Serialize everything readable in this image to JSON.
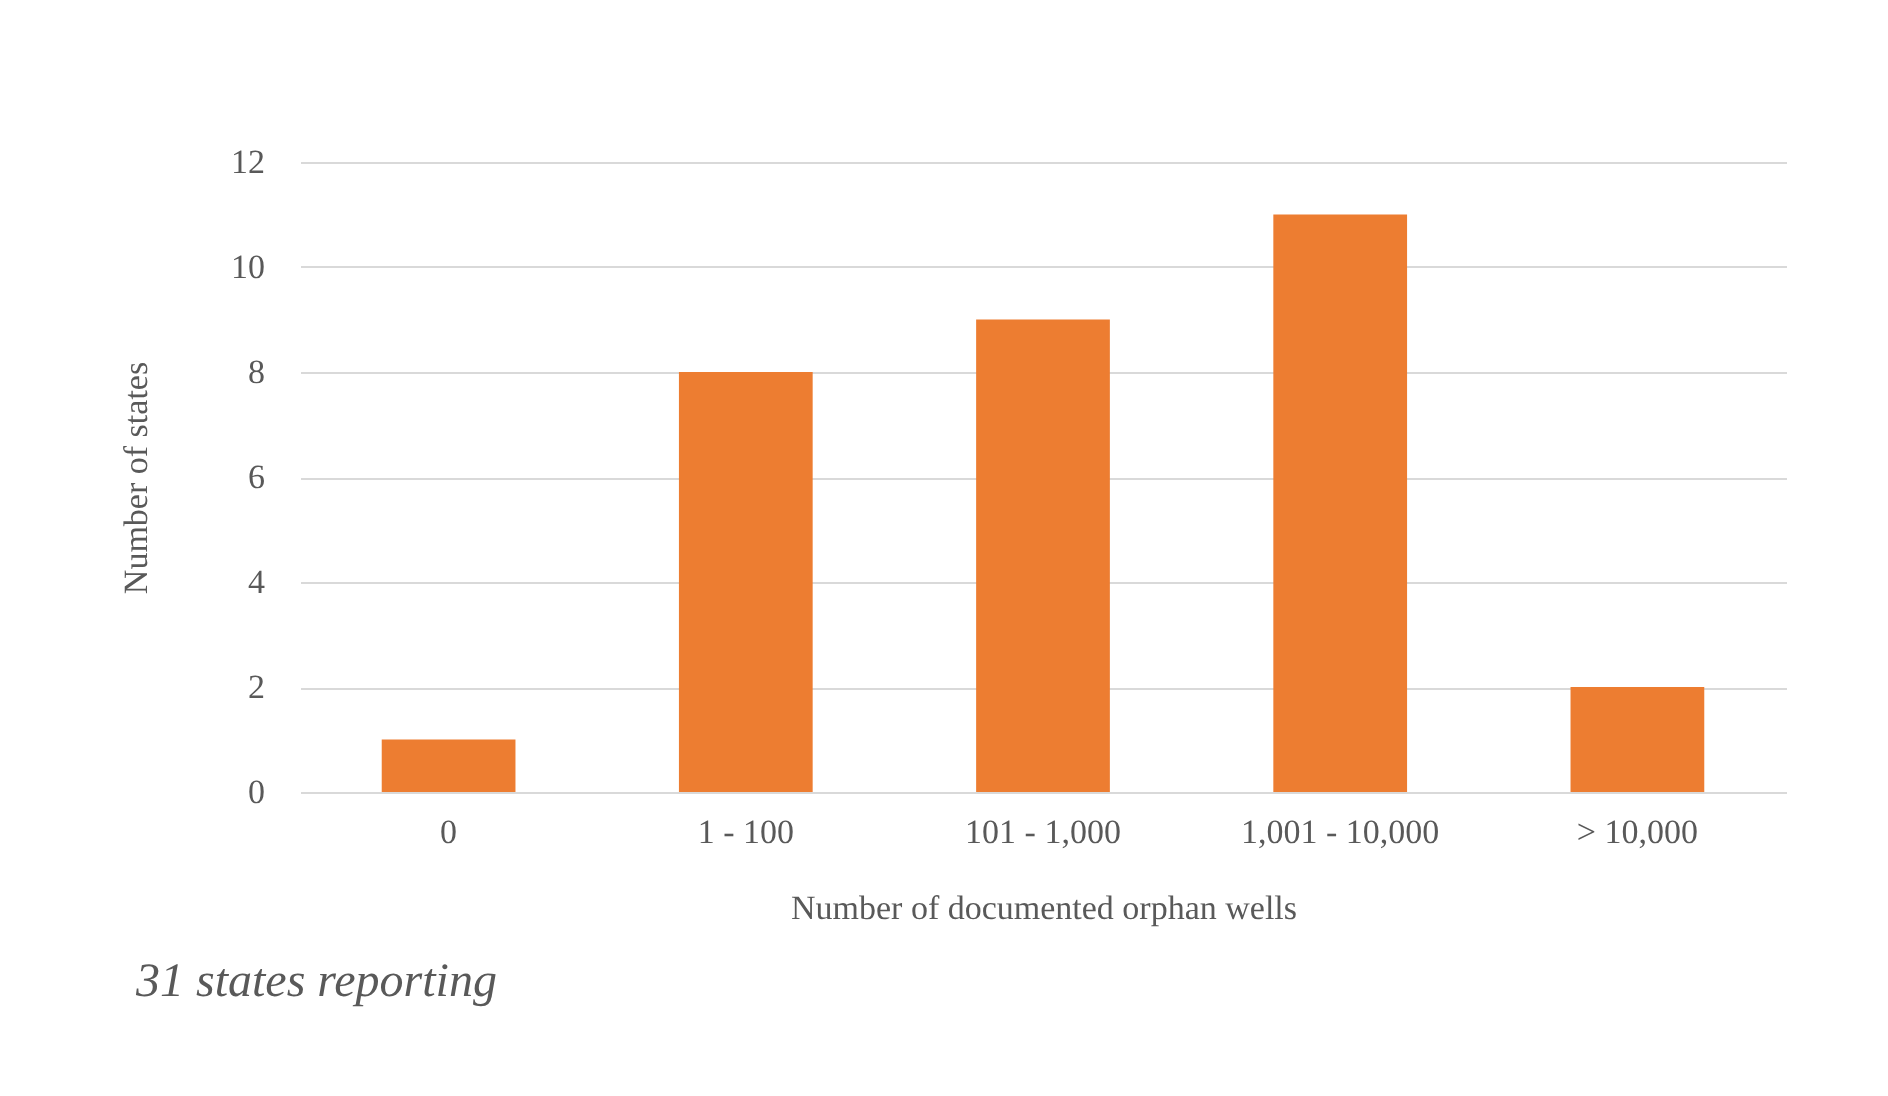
{
  "chart_data": {
    "type": "bar",
    "xlabel": "Number of documented orphan wells",
    "ylabel": "Number of states",
    "categories": [
      "0",
      "1 - 100",
      "101 - 1,000",
      "1,001 - 10,000",
      "> 10,000"
    ],
    "values": [
      1,
      8,
      9,
      11,
      2
    ],
    "color": "#ed7d31",
    "ylim": [
      0,
      12
    ],
    "yticks": [
      0,
      2,
      4,
      6,
      8,
      10,
      12
    ],
    "grid": "y",
    "annotations": [
      "31 states reporting"
    ]
  }
}
